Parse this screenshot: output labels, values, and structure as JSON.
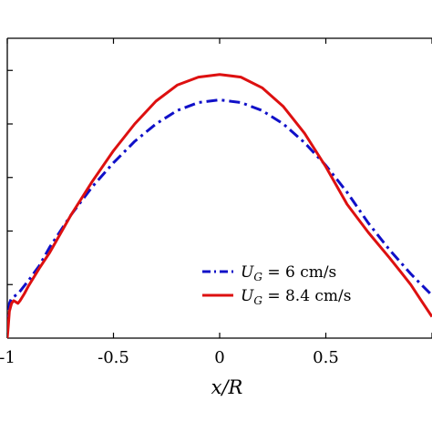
{
  "chart_data": {
    "type": "line",
    "xlabel": "x/R",
    "ylabel": "",
    "title": "",
    "xlim": [
      -1,
      1
    ],
    "ylim": [
      0,
      1.12
    ],
    "x_ticks": [
      -1,
      -0.5,
      0,
      0.5,
      1
    ],
    "x_tick_labels": [
      "-1",
      "-0.5",
      "0",
      "0.5",
      ""
    ],
    "y_ticks": [
      0.2,
      0.4,
      0.6,
      0.8,
      1.0
    ],
    "grid": false,
    "legend_position": "lower-right",
    "series": [
      {
        "name": "U_G = 6 cm/s",
        "label_main": "U",
        "label_sub": "G",
        "label_rest": " = 6 cm/s",
        "color": "#1010c8",
        "dash": "dash-dot",
        "x": [
          -1.0,
          -0.995,
          -0.99,
          -0.98,
          -0.97,
          -0.96,
          -0.95,
          -0.94,
          -0.92,
          -0.9,
          -0.85,
          -0.8,
          -0.75,
          -0.7,
          -0.6,
          -0.5,
          -0.4,
          -0.3,
          -0.2,
          -0.1,
          0.0,
          0.1,
          0.2,
          0.3,
          0.4,
          0.5,
          0.6,
          0.7,
          0.8,
          0.9,
          0.95,
          1.0
        ],
        "y": [
          0.02,
          0.08,
          0.13,
          0.15,
          0.155,
          0.16,
          0.165,
          0.175,
          0.195,
          0.215,
          0.27,
          0.34,
          0.4,
          0.46,
          0.565,
          0.655,
          0.735,
          0.8,
          0.85,
          0.88,
          0.89,
          0.88,
          0.85,
          0.8,
          0.73,
          0.645,
          0.545,
          0.43,
          0.33,
          0.24,
          0.2,
          0.16
        ]
      },
      {
        "name": "U_G = 8.4 cm/s",
        "label_main": "U",
        "label_sub": "G",
        "label_rest": " = 8.4 cm/s",
        "color": "#dd1010",
        "dash": "solid",
        "x": [
          -1.0,
          -0.995,
          -0.99,
          -0.98,
          -0.97,
          -0.96,
          -0.95,
          -0.94,
          -0.92,
          -0.9,
          -0.85,
          -0.8,
          -0.75,
          -0.7,
          -0.6,
          -0.5,
          -0.4,
          -0.3,
          -0.2,
          -0.1,
          0.0,
          0.1,
          0.2,
          0.3,
          0.4,
          0.5,
          0.6,
          0.7,
          0.8,
          0.85,
          0.9,
          0.95,
          1.0
        ],
        "y": [
          0.0,
          0.05,
          0.1,
          0.13,
          0.14,
          0.135,
          0.13,
          0.14,
          0.165,
          0.195,
          0.26,
          0.32,
          0.39,
          0.46,
          0.585,
          0.7,
          0.8,
          0.885,
          0.945,
          0.975,
          0.985,
          0.975,
          0.935,
          0.865,
          0.765,
          0.64,
          0.5,
          0.395,
          0.3,
          0.25,
          0.2,
          0.14,
          0.08
        ]
      }
    ]
  }
}
